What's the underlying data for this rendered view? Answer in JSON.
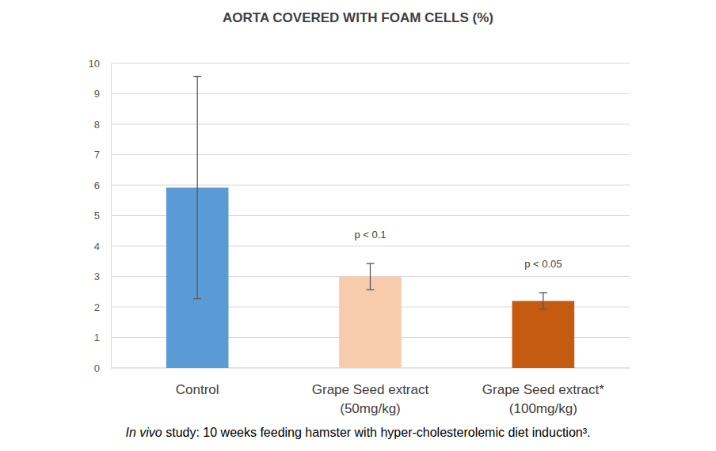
{
  "chart_data": {
    "type": "bar",
    "title": "AORTA COVERED WITH FOAM CELLS (%)",
    "categories": [
      "Control",
      "Grape Seed extract\n(50mg/kg)",
      "Grape Seed extract*\n(100mg/kg)"
    ],
    "values": [
      5.92,
      3.0,
      2.2
    ],
    "errors": [
      3.65,
      0.43,
      0.27
    ],
    "colors": [
      "#5b9bd5",
      "#f8cbad",
      "#c55a11"
    ],
    "annotations": [
      null,
      "p < 0.1",
      "p < 0.05"
    ],
    "caption": {
      "italic": "In vivo",
      "text": " study: 10 weeks feeding hamster with hyper-cholesterolemic diet induction³."
    },
    "ylim": [
      0,
      10
    ],
    "yticks": [
      0,
      1,
      2,
      3,
      4,
      5,
      6,
      7,
      8,
      9,
      10
    ],
    "grid": true
  }
}
